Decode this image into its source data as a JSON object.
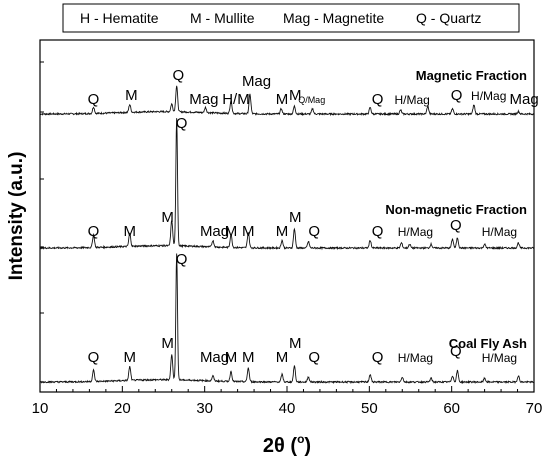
{
  "chart_data": {
    "type": "line",
    "xlabel": "2θ (",
    "xlabel_degree": "o",
    "xlabel_close": ")",
    "ylabel": "Intensity (a.u.)",
    "xlim": [
      10,
      70
    ],
    "xticks": [
      10,
      20,
      30,
      40,
      50,
      60,
      70
    ],
    "grid": false,
    "legend_entries": [
      "H - Hematite",
      "M - Mullite",
      "Mag - Magnetite",
      "Q - Quartz"
    ],
    "series": [
      {
        "name": "Magnetic Fraction",
        "peaks": [
          {
            "x": 16.5,
            "h": 0.05
          },
          {
            "x": 20.9,
            "h": 0.06
          },
          {
            "x": 26.0,
            "h": 0.06
          },
          {
            "x": 26.6,
            "h": 0.2
          },
          {
            "x": 30.1,
            "h": 0.04
          },
          {
            "x": 33.2,
            "h": 0.1
          },
          {
            "x": 35.5,
            "h": 0.15
          },
          {
            "x": 39.3,
            "h": 0.04
          },
          {
            "x": 40.9,
            "h": 0.06
          },
          {
            "x": 43.1,
            "h": 0.04
          },
          {
            "x": 50.1,
            "h": 0.05
          },
          {
            "x": 53.8,
            "h": 0.03
          },
          {
            "x": 57.1,
            "h": 0.06
          },
          {
            "x": 60.1,
            "h": 0.04
          },
          {
            "x": 62.7,
            "h": 0.07
          },
          {
            "x": 68.1,
            "h": 0.02
          }
        ],
        "labels": [
          {
            "x": 16.5,
            "text": "Q"
          },
          {
            "x": 21.1,
            "text": "M"
          },
          {
            "x": 26.8,
            "text": "Q"
          },
          {
            "x": 29.9,
            "text": "Mag"
          },
          {
            "x": 33.8,
            "text": "H/M"
          },
          {
            "x": 36.3,
            "text": "Mag"
          },
          {
            "x": 39.4,
            "text": "M"
          },
          {
            "x": 41.0,
            "text": "M"
          },
          {
            "x": 43.0,
            "text": "Q/Mag"
          },
          {
            "x": 51.0,
            "text": "Q"
          },
          {
            "x": 55.2,
            "text": "H/Mag"
          },
          {
            "x": 60.6,
            "text": "Q"
          },
          {
            "x": 64.5,
            "text": "H/Mag"
          },
          {
            "x": 68.8,
            "text": "Mag"
          }
        ]
      },
      {
        "name": "Non-magnetic Fraction",
        "peaks": [
          {
            "x": 16.5,
            "h": 0.1
          },
          {
            "x": 20.9,
            "h": 0.1
          },
          {
            "x": 26.0,
            "h": 0.2
          },
          {
            "x": 26.6,
            "h": 1.0
          },
          {
            "x": 31.0,
            "h": 0.05
          },
          {
            "x": 33.2,
            "h": 0.1
          },
          {
            "x": 35.3,
            "h": 0.12
          },
          {
            "x": 39.4,
            "h": 0.06
          },
          {
            "x": 40.9,
            "h": 0.15
          },
          {
            "x": 42.6,
            "h": 0.05
          },
          {
            "x": 50.1,
            "h": 0.06
          },
          {
            "x": 53.9,
            "h": 0.04
          },
          {
            "x": 54.9,
            "h": 0.03
          },
          {
            "x": 57.5,
            "h": 0.03
          },
          {
            "x": 60.1,
            "h": 0.07
          },
          {
            "x": 60.7,
            "h": 0.08
          },
          {
            "x": 64.0,
            "h": 0.03
          },
          {
            "x": 68.1,
            "h": 0.04
          }
        ],
        "labels": [
          {
            "x": 16.5,
            "text": "Q"
          },
          {
            "x": 20.9,
            "text": "M"
          },
          {
            "x": 25.5,
            "text": "M"
          },
          {
            "x": 27.2,
            "text": "Q"
          },
          {
            "x": 31.2,
            "text": "Mag"
          },
          {
            "x": 33.2,
            "text": "M"
          },
          {
            "x": 35.3,
            "text": "M"
          },
          {
            "x": 39.4,
            "text": "M"
          },
          {
            "x": 41.0,
            "text": "M"
          },
          {
            "x": 43.3,
            "text": "Q"
          },
          {
            "x": 51.0,
            "text": "Q"
          },
          {
            "x": 55.6,
            "text": "H/Mag"
          },
          {
            "x": 60.5,
            "text": "Q"
          },
          {
            "x": 65.8,
            "text": "H/Mag"
          }
        ]
      },
      {
        "name": "Coal Fly Ash",
        "peaks": [
          {
            "x": 16.5,
            "h": 0.09
          },
          {
            "x": 20.9,
            "h": 0.11
          },
          {
            "x": 26.0,
            "h": 0.2
          },
          {
            "x": 26.6,
            "h": 1.0
          },
          {
            "x": 31.0,
            "h": 0.04
          },
          {
            "x": 33.2,
            "h": 0.08
          },
          {
            "x": 35.3,
            "h": 0.11
          },
          {
            "x": 39.4,
            "h": 0.06
          },
          {
            "x": 40.9,
            "h": 0.13
          },
          {
            "x": 42.6,
            "h": 0.04
          },
          {
            "x": 50.1,
            "h": 0.06
          },
          {
            "x": 54.0,
            "h": 0.04
          },
          {
            "x": 57.5,
            "h": 0.03
          },
          {
            "x": 60.1,
            "h": 0.05
          },
          {
            "x": 60.7,
            "h": 0.09
          },
          {
            "x": 64.0,
            "h": 0.03
          },
          {
            "x": 68.1,
            "h": 0.05
          }
        ],
        "labels": [
          {
            "x": 16.5,
            "text": "Q"
          },
          {
            "x": 20.9,
            "text": "M"
          },
          {
            "x": 25.5,
            "text": "M"
          },
          {
            "x": 27.2,
            "text": "Q"
          },
          {
            "x": 31.2,
            "text": "Mag"
          },
          {
            "x": 33.2,
            "text": "M"
          },
          {
            "x": 35.3,
            "text": "M"
          },
          {
            "x": 39.4,
            "text": "M"
          },
          {
            "x": 41.0,
            "text": "M"
          },
          {
            "x": 43.3,
            "text": "Q"
          },
          {
            "x": 51.0,
            "text": "Q"
          },
          {
            "x": 55.6,
            "text": "H/Mag"
          },
          {
            "x": 60.5,
            "text": "Q"
          },
          {
            "x": 65.8,
            "text": "H/Mag"
          }
        ]
      }
    ]
  }
}
